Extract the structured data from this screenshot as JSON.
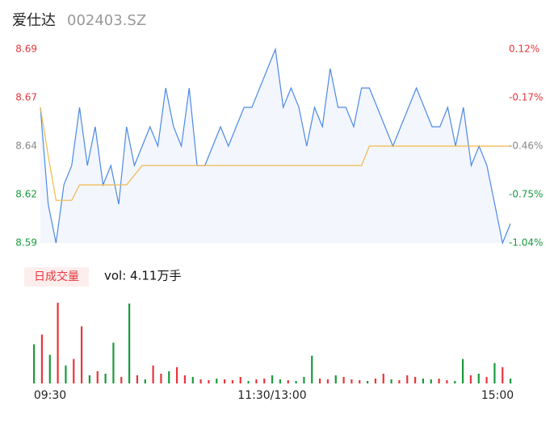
{
  "header": {
    "name": "爱仕达",
    "code": "002403.SZ"
  },
  "chart_data": [
    {
      "type": "line",
      "x": [
        0,
        4,
        8,
        12,
        16,
        20,
        24,
        28,
        32,
        36,
        40,
        44,
        48,
        52,
        56,
        60,
        64,
        68,
        72,
        76,
        80,
        84,
        88,
        92,
        96,
        100,
        104,
        108,
        112,
        116,
        120,
        124,
        128,
        132,
        136,
        140,
        144,
        148,
        152,
        156,
        160,
        164,
        168,
        172,
        176,
        180,
        184,
        188,
        192,
        196,
        200,
        204,
        208,
        212,
        216,
        220,
        224,
        228,
        232,
        236,
        240
      ],
      "series": [
        {
          "color": "#4c8ae6",
          "values": [
            8.66,
            8.61,
            8.59,
            8.62,
            8.63,
            8.66,
            8.63,
            8.65,
            8.62,
            8.63,
            8.61,
            8.65,
            8.63,
            8.64,
            8.65,
            8.64,
            8.67,
            8.65,
            8.64,
            8.67,
            8.63,
            8.63,
            8.64,
            8.65,
            8.64,
            8.65,
            8.66,
            8.66,
            8.67,
            8.68,
            8.69,
            8.66,
            8.67,
            8.66,
            8.64,
            8.66,
            8.65,
            8.68,
            8.66,
            8.66,
            8.65,
            8.67,
            8.67,
            8.66,
            8.65,
            8.64,
            8.65,
            8.66,
            8.67,
            8.66,
            8.65,
            8.65,
            8.66,
            8.64,
            8.66,
            8.63,
            8.64,
            8.63,
            8.61,
            8.59,
            8.6
          ]
        },
        {
          "color": "#f2b84b",
          "values": [
            8.66,
            8.635,
            8.612,
            8.612,
            8.612,
            8.62,
            8.62,
            8.62,
            8.62,
            8.62,
            8.62,
            8.62,
            8.625,
            8.63,
            8.63,
            8.63,
            8.63,
            8.63,
            8.63,
            8.63,
            8.63,
            8.63,
            8.63,
            8.63,
            8.63,
            8.63,
            8.63,
            8.63,
            8.63,
            8.63,
            8.63,
            8.63,
            8.63,
            8.63,
            8.63,
            8.63,
            8.63,
            8.63,
            8.63,
            8.63,
            8.63,
            8.63,
            8.64,
            8.64,
            8.64,
            8.64,
            8.64,
            8.64,
            8.64,
            8.64,
            8.64,
            8.64,
            8.64,
            8.64,
            8.64,
            8.64,
            8.64,
            8.64,
            8.64,
            8.64,
            8.64
          ]
        }
      ],
      "area_color": "#f3f6fd",
      "xlim": [
        0,
        240
      ],
      "ylim": [
        8.59,
        8.69
      ],
      "yticks": [
        8.69,
        {
          "value": 8.665,
          "label": "8.67"
        },
        8.64,
        {
          "value": 8.615,
          "label": "8.62"
        },
        8.59
      ],
      "ytick_colors": [
        "#e8353b",
        "#e8353b",
        "#888888",
        "#1a9a3e",
        "#1a9a3e"
      ],
      "y2lim": [
        -1.04,
        0.12
      ],
      "y2ticks": [
        {
          "value": 0.12,
          "label": "0.12%"
        },
        {
          "value": -0.17,
          "label": "-0.17%"
        },
        {
          "value": -0.46,
          "label": "-0.46%"
        },
        {
          "value": -0.75,
          "label": "-0.75%"
        },
        {
          "value": -1.04,
          "label": "-1.04%"
        }
      ],
      "y2tick_colors": [
        "#e8353b",
        "#e8353b",
        "#888888",
        "#1a9a3e",
        "#1a9a3e"
      ]
    },
    {
      "type": "bar",
      "title": "日成交量",
      "subtitle": "vol: 4.11万手",
      "x": [
        0,
        4,
        8,
        12,
        16,
        20,
        24,
        28,
        32,
        36,
        40,
        44,
        48,
        52,
        56,
        60,
        64,
        68,
        72,
        76,
        80,
        84,
        88,
        92,
        96,
        100,
        104,
        108,
        112,
        116,
        120,
        124,
        128,
        132,
        136,
        140,
        144,
        148,
        152,
        156,
        160,
        164,
        168,
        172,
        176,
        180,
        184,
        188,
        192,
        196,
        200,
        204,
        208,
        212,
        216,
        220,
        224,
        228,
        232,
        236,
        240
      ],
      "values": [
        480,
        600,
        350,
        990,
        220,
        300,
        700,
        100,
        150,
        120,
        500,
        80,
        980,
        100,
        50,
        220,
        120,
        150,
        200,
        100,
        80,
        50,
        40,
        60,
        50,
        40,
        80,
        30,
        50,
        60,
        100,
        50,
        40,
        30,
        80,
        340,
        60,
        50,
        100,
        80,
        50,
        40,
        30,
        60,
        120,
        50,
        40,
        100,
        80,
        60,
        50,
        60,
        40,
        30,
        300,
        100,
        120,
        80,
        250,
        200,
        60
      ],
      "colors": [
        "#1a9a3e",
        "#e8353b",
        "#1a9a3e",
        "#e8353b",
        "#1a9a3e",
        "#e8353b",
        "#e8353b",
        "#1a9a3e",
        "#e8353b",
        "#1a9a3e",
        "#1a9a3e",
        "#e8353b",
        "#1a9a3e",
        "#e8353b",
        "#1a9a3e",
        "#e8353b",
        "#e8353b",
        "#1a9a3e",
        "#e8353b",
        "#e8353b",
        "#1a9a3e",
        "#e8353b",
        "#e8353b",
        "#1a9a3e",
        "#e8353b",
        "#e8353b",
        "#e8353b",
        "#1a9a3e",
        "#e8353b",
        "#e8353b",
        "#1a9a3e",
        "#1a9a3e",
        "#e8353b",
        "#1a9a3e",
        "#1a9a3e",
        "#1a9a3e",
        "#e8353b",
        "#e8353b",
        "#1a9a3e",
        "#e8353b",
        "#e8353b",
        "#e8353b",
        "#1a9a3e",
        "#e8353b",
        "#e8353b",
        "#1a9a3e",
        "#e8353b",
        "#e8353b",
        "#e8353b",
        "#1a9a3e",
        "#1a9a3e",
        "#e8353b",
        "#e8353b",
        "#1a9a3e",
        "#1a9a3e",
        "#e8353b",
        "#1a9a3e",
        "#e8353b",
        "#1a9a3e",
        "#e8353b",
        "#1a9a3e"
      ],
      "badge_color": "#e8353b",
      "xlim": [
        0,
        240
      ],
      "xticks": [
        {
          "value": 0,
          "label": "09:30"
        },
        {
          "value": 120,
          "label": "11:30/13:00"
        },
        {
          "value": 240,
          "label": "15:00"
        }
      ]
    }
  ]
}
